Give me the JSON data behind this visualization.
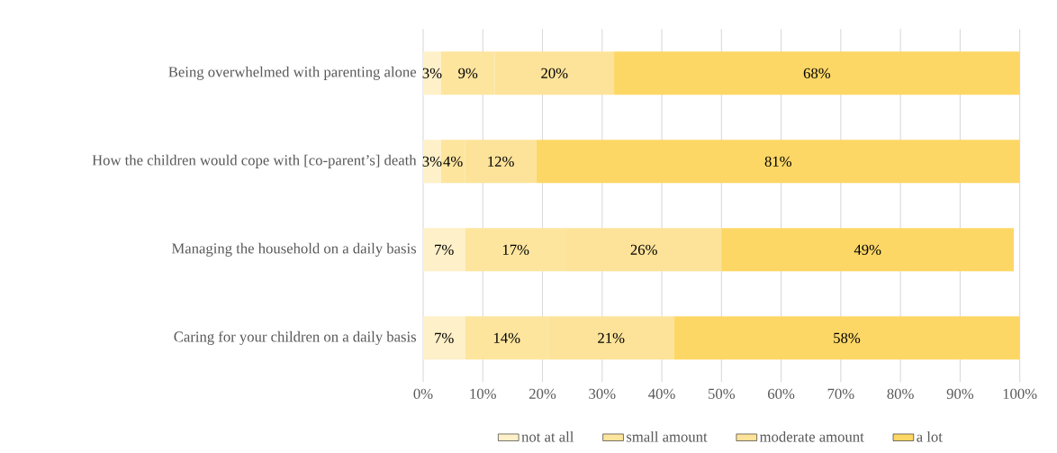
{
  "chart_data": {
    "type": "bar",
    "orientation": "horizontal",
    "stacked": true,
    "categories": [
      "Being overwhelmed with parenting alone",
      "How the children would cope with [co-parent’s] death",
      "Managing the household on a daily basis",
      "Caring for your children on a daily basis"
    ],
    "series": [
      {
        "name": "not at all",
        "color": "#fef0c8",
        "values": [
          3,
          3,
          7,
          7
        ],
        "value_labels": [
          "3%",
          "3%",
          "7%",
          "7%"
        ]
      },
      {
        "name": "small amount",
        "color": "#fde59e",
        "values": [
          9,
          4,
          17,
          14
        ],
        "value_labels": [
          "9%",
          "4%",
          "17%",
          "14%"
        ]
      },
      {
        "name": "moderate amount",
        "color": "#fde399",
        "values": [
          20,
          12,
          26,
          21
        ],
        "value_labels": [
          "20%",
          "12%",
          "26%",
          "21%"
        ]
      },
      {
        "name": "a lot",
        "color": "#fdd766",
        "values": [
          68,
          81,
          49,
          58
        ],
        "value_labels": [
          "68%",
          "81%",
          "49%",
          "58%"
        ]
      }
    ],
    "xlim": [
      0,
      100
    ],
    "xticks": [
      {
        "value": 0,
        "label": "0%"
      },
      {
        "value": 10,
        "label": "10%"
      },
      {
        "value": 20,
        "label": "20%"
      },
      {
        "value": 30,
        "label": "30%"
      },
      {
        "value": 40,
        "label": "40%"
      },
      {
        "value": 50,
        "label": "50%"
      },
      {
        "value": 60,
        "label": "60%"
      },
      {
        "value": 70,
        "label": "70%"
      },
      {
        "value": 80,
        "label": "80%"
      },
      {
        "value": 90,
        "label": "90%"
      },
      {
        "value": 100,
        "label": "100%"
      }
    ],
    "grid": "x",
    "legend": "bottom"
  }
}
